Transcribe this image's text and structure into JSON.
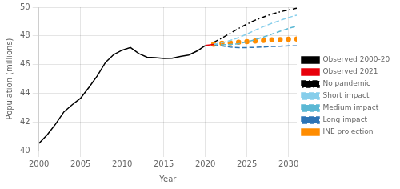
{
  "chart_data": {
    "type": "line",
    "xlabel": "Year",
    "ylabel": "Population (millions)",
    "xlim": [
      2000,
      2031
    ],
    "ylim": [
      40,
      50
    ],
    "xticks": [
      2000,
      2005,
      2010,
      2015,
      2020,
      2025,
      2030
    ],
    "yticks": [
      40,
      42,
      44,
      46,
      48,
      50
    ],
    "grid": true,
    "legend": "right",
    "series": [
      {
        "name": "Observed 2000-20",
        "color": "#000000",
        "line_style": "solid",
        "x": [
          2000,
          2001,
          2002,
          2003,
          2004,
          2005,
          2006,
          2007,
          2008,
          2009,
          2010,
          2011,
          2012,
          2013,
          2014,
          2015,
          2016,
          2017,
          2018,
          2019,
          2020
        ],
        "values": [
          40.5,
          41.1,
          41.85,
          42.7,
          43.2,
          43.65,
          44.4,
          45.2,
          46.15,
          46.7,
          47.0,
          47.19,
          46.77,
          46.51,
          46.48,
          46.42,
          46.44,
          46.57,
          46.66,
          46.94,
          47.33
        ]
      },
      {
        "name": "Observed 2021",
        "color": "#e8000b",
        "line_style": "solid",
        "x": [
          2020,
          2021
        ],
        "values": [
          47.33,
          47.4
        ]
      },
      {
        "name": "No pandemic",
        "color": "#000000",
        "line_style": "dashdot",
        "x": [
          2021,
          2022,
          2023,
          2024,
          2025,
          2026,
          2027,
          2028,
          2029,
          2030,
          2031
        ],
        "values": [
          47.55,
          47.85,
          48.18,
          48.52,
          48.82,
          49.1,
          49.32,
          49.52,
          49.68,
          49.82,
          49.93
        ]
      },
      {
        "name": "Short impact",
        "color": "#87CEEB",
        "line_style": "dashed",
        "x": [
          2021,
          2022,
          2023,
          2024,
          2025,
          2026,
          2027,
          2028,
          2029,
          2030,
          2031
        ],
        "values": [
          47.42,
          47.52,
          47.68,
          47.88,
          48.12,
          48.4,
          48.65,
          48.88,
          49.08,
          49.28,
          49.45
        ]
      },
      {
        "name": "Medium impact",
        "color": "#5BB8D4",
        "line_style": "dashed",
        "x": [
          2021,
          2022,
          2023,
          2024,
          2025,
          2026,
          2027,
          2028,
          2029,
          2030,
          2031
        ],
        "values": [
          47.42,
          47.38,
          47.4,
          47.45,
          47.58,
          47.74,
          47.92,
          48.12,
          48.32,
          48.52,
          48.68
        ]
      },
      {
        "name": "Long impact",
        "color": "#2E75B6",
        "line_style": "dashed",
        "x": [
          2021,
          2022,
          2023,
          2024,
          2025,
          2026,
          2027,
          2028,
          2029,
          2030,
          2031
        ],
        "values": [
          47.42,
          47.3,
          47.22,
          47.18,
          47.18,
          47.2,
          47.22,
          47.26,
          47.28,
          47.3,
          47.3
        ]
      },
      {
        "name": "INE projection",
        "color": "#FF8C00",
        "line_style": "none",
        "marker": "circle",
        "x": [
          2021,
          2022,
          2023,
          2024,
          2025,
          2026,
          2027,
          2028,
          2029,
          2030,
          2031
        ],
        "values": [
          47.42,
          47.48,
          47.52,
          47.56,
          47.6,
          47.64,
          47.68,
          47.72,
          47.74,
          47.76,
          47.78
        ]
      }
    ]
  }
}
